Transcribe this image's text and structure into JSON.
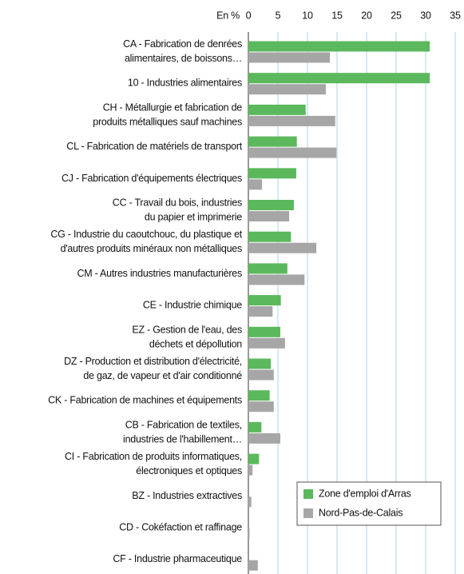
{
  "chart_data": {
    "type": "hbar",
    "x_label": "En %",
    "categories": [
      "CA - Fabrication de denrées\nalimentaires, de boissons…",
      "10 - Industries alimentaires",
      "CH - Métallurgie et fabrication de\nproduits métalliques sauf machines",
      "CL - Fabrication de matériels de transport",
      "CJ - Fabrication d'équipements électriques",
      "CC - Travail du bois, industries\ndu papier et imprimerie",
      "CG - Industrie du caoutchouc, du plastique et\nd'autres produits minéraux non métalliques",
      "CM - Autres industries manufacturières",
      "CE - Industrie chimique",
      "EZ - Gestion de l'eau, des\ndéchets et dépollution",
      "DZ - Production et distribution d'électricité,\nde gaz, de vapeur et d'air conditionné",
      "CK - Fabrication de machines et équipements",
      "CB - Fabrication de textiles,\nindustries de l'habillement…",
      "CI - Fabrication de produits informatiques,\nélectroniques et optiques",
      "BZ - Industries extractives",
      "CD - Cokéfaction et raffinage",
      "CF - Industrie pharmaceutique"
    ],
    "category_label_colors": [
      "#111",
      "#777",
      "#111",
      "#111",
      "#111",
      "#111",
      "#111",
      "#111",
      "#111",
      "#111",
      "#111",
      "#111",
      "#111",
      "#111",
      "#111",
      "#111",
      "#111"
    ],
    "series": [
      {
        "name": "Zone d'emploi d'Arras",
        "color": "#5cb85c",
        "values": [
          30.7,
          30.7,
          9.7,
          8.2,
          8.1,
          7.7,
          7.2,
          6.6,
          5.5,
          5.4,
          3.8,
          3.6,
          2.2,
          1.8,
          0,
          0,
          0
        ]
      },
      {
        "name": "Nord-Pas-de-Calais",
        "color": "#a6a6a6",
        "values": [
          13.8,
          13.1,
          14.7,
          14.9,
          2.3,
          6.9,
          11.5,
          9.5,
          4.1,
          6.2,
          4.3,
          4.3,
          5.4,
          0.7,
          0.5,
          0.2,
          1.6
        ]
      }
    ],
    "xlim": [
      0,
      35
    ],
    "xticks": [
      0,
      5,
      10,
      15,
      20,
      25,
      30,
      35
    ],
    "grid": true,
    "legend_position": "lower right"
  }
}
